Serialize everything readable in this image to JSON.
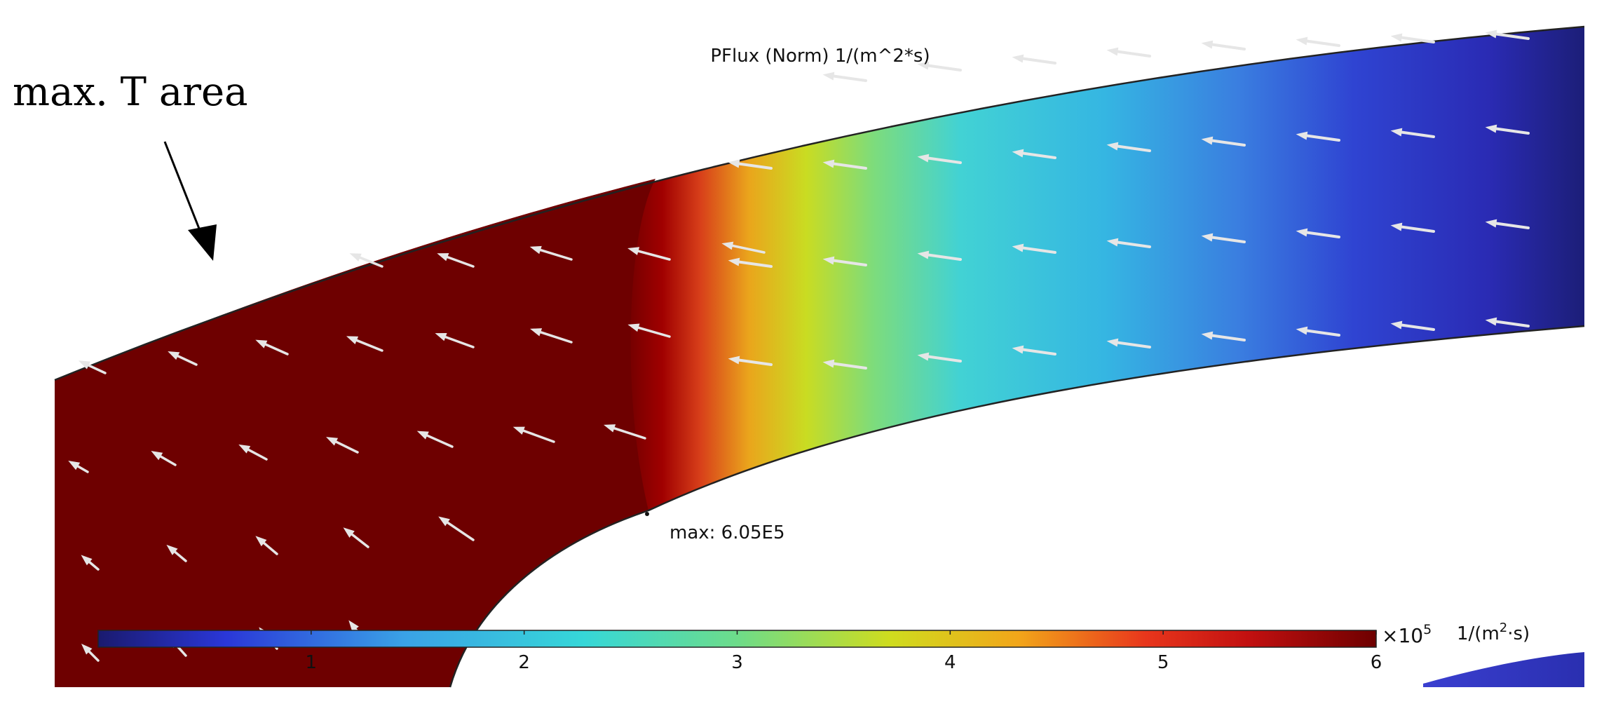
{
  "plot": {
    "title": "PFlux (Norm) 1/(m^2*s)",
    "max_label": "max: 6.05E5",
    "annotation": "max. T area"
  },
  "colorbar": {
    "range": [
      0,
      6
    ],
    "ticks": [
      "1",
      "2",
      "3",
      "4",
      "5",
      "6"
    ],
    "multiplier_prefix": "×10",
    "multiplier_exp": "5",
    "unit_prefix": "1/(m",
    "unit_exp": "2",
    "unit_suffix": "·s)",
    "colormap": [
      "#1a1a6e",
      "#2a37d8",
      "#3aa2e6",
      "#36d7d8",
      "#6ddc8a",
      "#cfdc1e",
      "#f2a61a",
      "#e8361c",
      "#c21010",
      "#6e0000"
    ]
  },
  "colors": {
    "background": "#ffffff",
    "arrow": "#e6e6e6",
    "outline": "#222222",
    "max_region": "#6e0000"
  }
}
